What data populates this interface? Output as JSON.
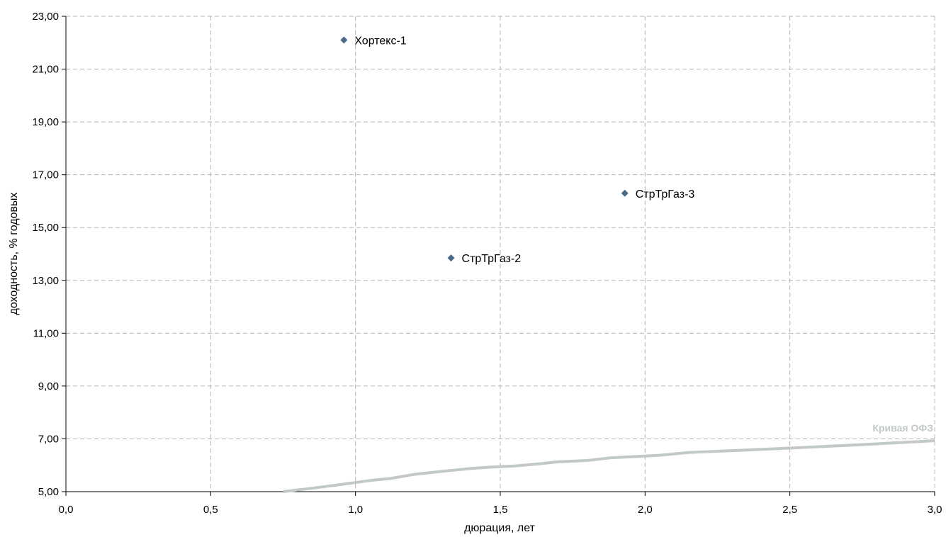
{
  "chart_data": {
    "type": "scatter",
    "xlabel": "дюрация, лет",
    "ylabel": "доходность, % годовых",
    "xlim": [
      0,
      3
    ],
    "ylim": [
      5,
      23
    ],
    "x_ticks": [
      "0,0",
      "0,5",
      "1,0",
      "1,5",
      "2,0",
      "2,5",
      "3,0"
    ],
    "y_ticks": [
      "5,00",
      "7,00",
      "9,00",
      "11,00",
      "13,00",
      "15,00",
      "17,00",
      "19,00",
      "21,00",
      "23,00"
    ],
    "grid": true,
    "series": [
      {
        "type": "scatter",
        "color": "#4a6a8a",
        "marker": "diamond",
        "points": [
          {
            "x": 0.96,
            "y": 22.1,
            "label": "Хортекс-1"
          },
          {
            "x": 1.33,
            "y": 13.85,
            "label": "СтрТрГаз-2"
          },
          {
            "x": 1.93,
            "y": 16.3,
            "label": "СтрТрГаз-3"
          }
        ]
      },
      {
        "name": "Кривая ОФЗ",
        "type": "line",
        "color": "#c3c8c8",
        "x": [
          0.75,
          0.85,
          0.95,
          1.05,
          1.12,
          1.2,
          1.3,
          1.4,
          1.47,
          1.55,
          1.63,
          1.7,
          1.8,
          1.88,
          2.05,
          2.15,
          2.5,
          2.75,
          3.0
        ],
        "y": [
          5.0,
          5.13,
          5.27,
          5.42,
          5.5,
          5.65,
          5.77,
          5.88,
          5.93,
          5.97,
          6.05,
          6.13,
          6.18,
          6.28,
          6.38,
          6.48,
          6.65,
          6.78,
          6.93
        ]
      }
    ]
  }
}
